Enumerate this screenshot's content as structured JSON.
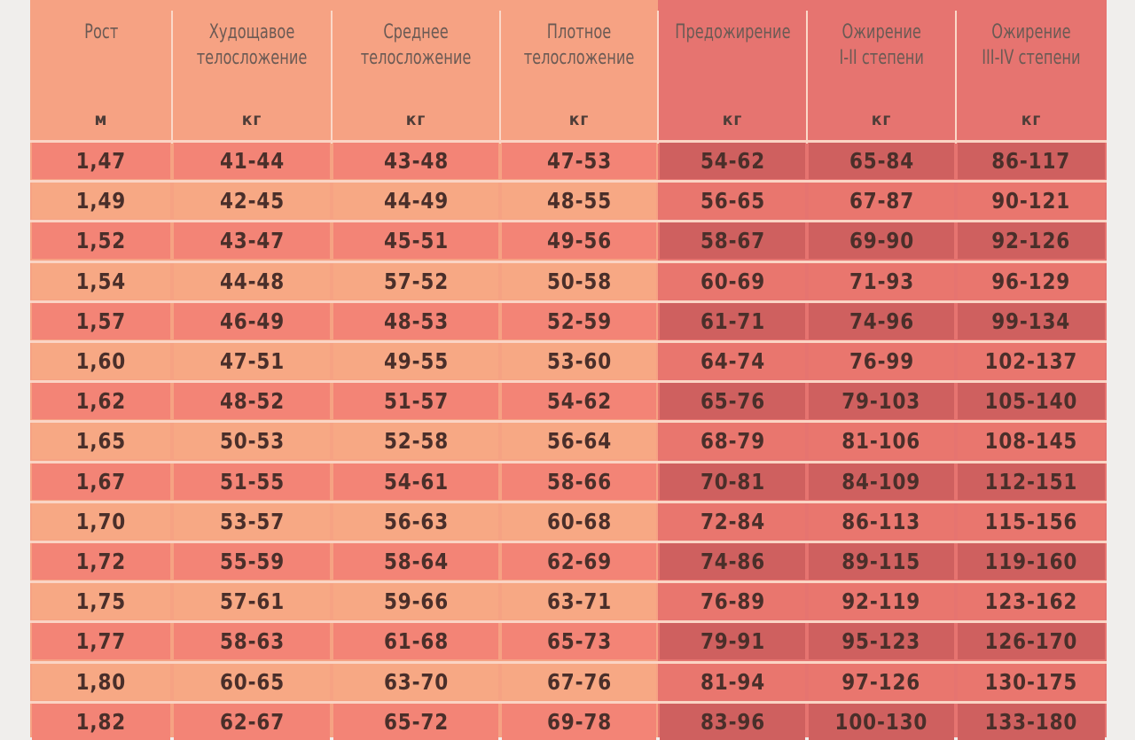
{
  "headers": [
    {
      "title": [
        "Рост"
      ],
      "unit": "м"
    },
    {
      "title": [
        "Худощавое",
        "телосложение"
      ],
      "unit": "кг"
    },
    {
      "title": [
        "Среднее",
        "телосложение"
      ],
      "unit": "кг"
    },
    {
      "title": [
        "Плотное",
        "телосложение"
      ],
      "unit": "кг"
    },
    {
      "title": [
        "Предожирение"
      ],
      "unit": "кг"
    },
    {
      "title": [
        "Ожирение",
        "I-II степени"
      ],
      "unit": "кг"
    },
    {
      "title": [
        "Ожирение",
        "III-IV степени"
      ],
      "unit": "кг"
    }
  ],
  "rows": [
    [
      "1,47",
      "41-44",
      "43-48",
      "47-53",
      "54-62",
      "65-84",
      "86-117"
    ],
    [
      "1,49",
      "42-45",
      "44-49",
      "48-55",
      "56-65",
      "67-87",
      "90-121"
    ],
    [
      "1,52",
      "43-47",
      "45-51",
      "49-56",
      "58-67",
      "69-90",
      "92-126"
    ],
    [
      "1,54",
      "44-48",
      "57-52",
      "50-58",
      "60-69",
      "71-93",
      "96-129"
    ],
    [
      "1,57",
      "46-49",
      "48-53",
      "52-59",
      "61-71",
      "74-96",
      "99-134"
    ],
    [
      "1,60",
      "47-51",
      "49-55",
      "53-60",
      "64-74",
      "76-99",
      "102-137"
    ],
    [
      "1,62",
      "48-52",
      "51-57",
      "54-62",
      "65-76",
      "79-103",
      "105-140"
    ],
    [
      "1,65",
      "50-53",
      "52-58",
      "56-64",
      "68-79",
      "81-106",
      "108-145"
    ],
    [
      "1,67",
      "51-55",
      "54-61",
      "58-66",
      "70-81",
      "84-109",
      "112-151"
    ],
    [
      "1,70",
      "53-57",
      "56-63",
      "60-68",
      "72-84",
      "86-113",
      "115-156"
    ],
    [
      "1,72",
      "55-59",
      "58-64",
      "62-69",
      "74-86",
      "89-115",
      "119-160"
    ],
    [
      "1,75",
      "57-61",
      "59-66",
      "63-71",
      "76-89",
      "92-119",
      "123-162"
    ],
    [
      "1,77",
      "58-63",
      "61-68",
      "65-73",
      "79-91",
      "95-123",
      "126-170"
    ],
    [
      "1,80",
      "60-65",
      "63-70",
      "67-76",
      "81-94",
      "97-126",
      "130-175"
    ],
    [
      "1,82",
      "62-67",
      "65-72",
      "69-78",
      "83-96",
      "100-130",
      "133-180"
    ]
  ],
  "colors": {
    "header_left": "#f6a283",
    "header_right": "#e67470",
    "row_light": "#f7a884",
    "row_dark": "#f38476",
    "obesity_light": "#e9766e",
    "obesity_dark": "#cf605f"
  }
}
